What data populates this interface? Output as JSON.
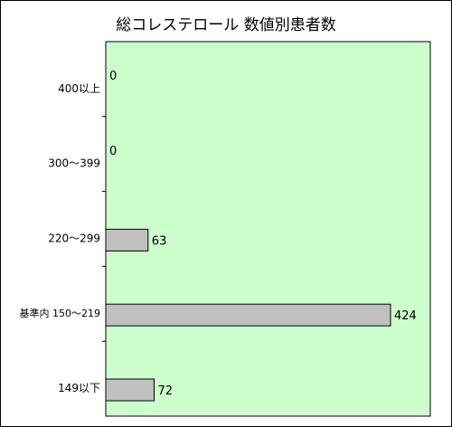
{
  "chart_data": {
    "type": "bar",
    "orientation": "horizontal",
    "title": "総コレステロール 数値別患者数",
    "categories": [
      "400以上",
      "300～399",
      "220～299",
      "基準内 150～219",
      "149以下"
    ],
    "values": [
      0,
      0,
      63,
      424,
      72
    ],
    "xlabel": "",
    "ylabel": "",
    "xlim": [
      0,
      460
    ],
    "grid": false,
    "legend": "none",
    "colors": {
      "plot_background": "#ccffcc",
      "bar_fill": "#c0c0c0",
      "bar_stroke": "#000000"
    }
  }
}
